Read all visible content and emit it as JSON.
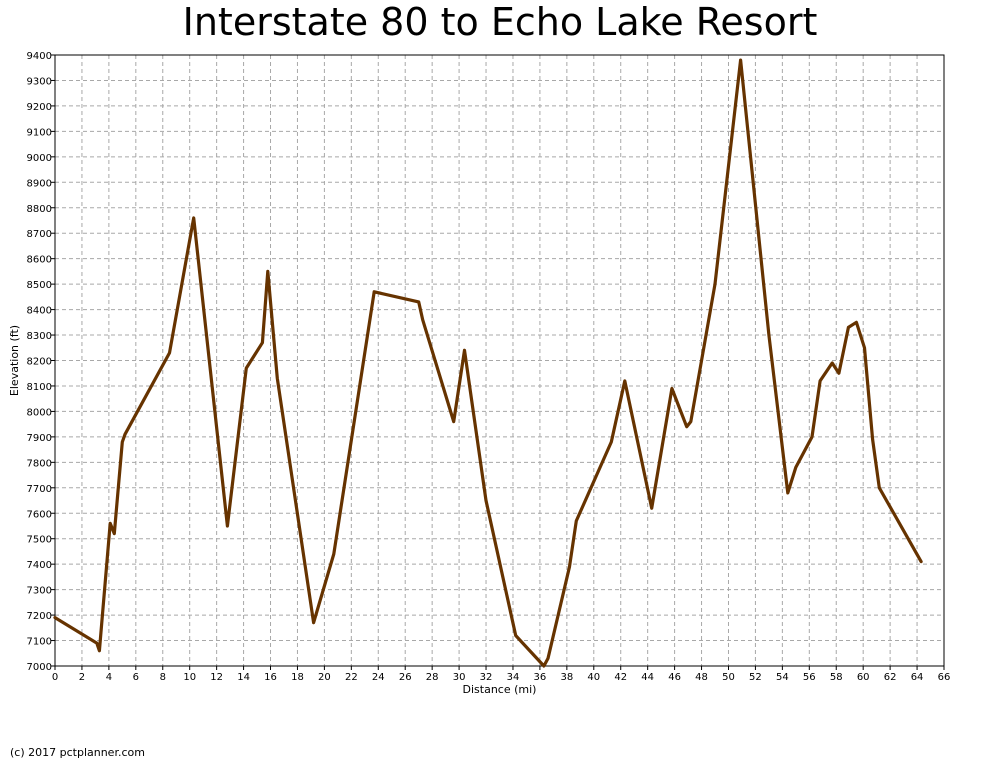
{
  "chart_data": {
    "type": "line",
    "title": "Interstate 80 to Echo Lake Resort",
    "xlabel": "Distance (mi)",
    "ylabel": "Elevation (ft)",
    "xlim": [
      0,
      66
    ],
    "ylim": [
      7000,
      9400
    ],
    "x_ticks": [
      0,
      2,
      4,
      6,
      8,
      10,
      12,
      14,
      16,
      18,
      20,
      22,
      24,
      26,
      28,
      30,
      32,
      34,
      36,
      38,
      40,
      42,
      44,
      46,
      48,
      50,
      52,
      54,
      56,
      58,
      60,
      62,
      64,
      66
    ],
    "y_ticks": [
      7000,
      7100,
      7200,
      7300,
      7400,
      7500,
      7600,
      7700,
      7800,
      7900,
      8000,
      8100,
      8200,
      8300,
      8400,
      8500,
      8600,
      8700,
      8800,
      8900,
      9000,
      9100,
      9200,
      9300,
      9400
    ],
    "grid": true,
    "line_color": "#663300",
    "series": [
      {
        "points": [
          [
            0,
            7190
          ],
          [
            3.1,
            7090
          ],
          [
            3.3,
            7060
          ],
          [
            4.1,
            7560
          ],
          [
            4.4,
            7520
          ],
          [
            5.0,
            7880
          ],
          [
            5.2,
            7910
          ],
          [
            8.5,
            8230
          ],
          [
            10.3,
            8760
          ],
          [
            12.8,
            7550
          ],
          [
            14.2,
            8170
          ],
          [
            15.4,
            8270
          ],
          [
            15.8,
            8550
          ],
          [
            16.5,
            8130
          ],
          [
            19.2,
            7170
          ],
          [
            20.7,
            7440
          ],
          [
            23.7,
            8470
          ],
          [
            27.0,
            8430
          ],
          [
            27.3,
            8360
          ],
          [
            29.6,
            7960
          ],
          [
            30.4,
            8240
          ],
          [
            32.0,
            7650
          ],
          [
            34.2,
            7120
          ],
          [
            36.3,
            7000
          ],
          [
            36.6,
            7030
          ],
          [
            38.2,
            7390
          ],
          [
            38.7,
            7570
          ],
          [
            41.3,
            7880
          ],
          [
            42.3,
            8120
          ],
          [
            44.3,
            7620
          ],
          [
            45.8,
            8090
          ],
          [
            46.9,
            7940
          ],
          [
            47.2,
            7960
          ],
          [
            49.0,
            8500
          ],
          [
            50.9,
            9380
          ],
          [
            53.0,
            8300
          ],
          [
            54.4,
            7680
          ],
          [
            55.0,
            7780
          ],
          [
            56.2,
            7900
          ],
          [
            56.8,
            8120
          ],
          [
            57.7,
            8190
          ],
          [
            58.2,
            8150
          ],
          [
            58.9,
            8330
          ],
          [
            59.5,
            8350
          ],
          [
            60.1,
            8250
          ],
          [
            60.7,
            7890
          ],
          [
            61.2,
            7700
          ],
          [
            64.3,
            7410
          ]
        ]
      }
    ]
  },
  "footer": {
    "copyright": "(c) 2017 pctplanner.com"
  }
}
